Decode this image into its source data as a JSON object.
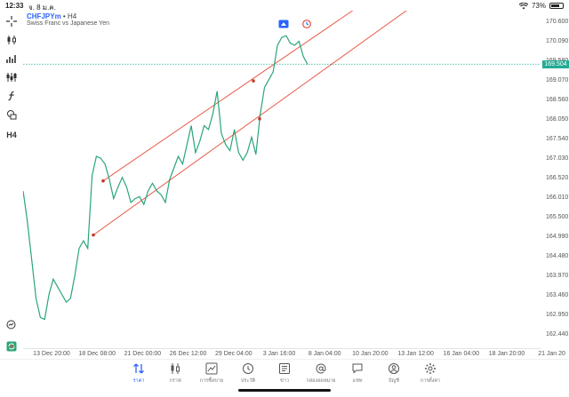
{
  "status_bar": {
    "time": "12:33",
    "date": "จ. 8 ม.ค.",
    "battery": "73%",
    "battery_level": 0.73
  },
  "symbol": {
    "name": "CHFJPYm",
    "separator": "•",
    "timeframe": "H4",
    "description": "Swiss Franc vs Japanese Yen"
  },
  "toolbar": {
    "items": [
      {
        "name": "crosshair-icon"
      },
      {
        "name": "candlestick-icon"
      },
      {
        "name": "indicators-icon"
      },
      {
        "name": "objects-icon"
      },
      {
        "name": "function-icon"
      },
      {
        "name": "shapes-icon"
      },
      {
        "name": "timeframe-label",
        "label": "H4"
      }
    ]
  },
  "price_axis": {
    "ticks": [
      "170.600",
      "170.090",
      "169.580",
      "169.070",
      "168.560",
      "168.050",
      "167.540",
      "167.030",
      "166.520",
      "166.010",
      "165.500",
      "164.990",
      "164.480",
      "163.970",
      "163.460",
      "162.950",
      "162.440"
    ],
    "current_price": "169.504",
    "accent_color": "#22ab94"
  },
  "time_axis": {
    "ticks": [
      "13 Dec 20:00",
      "18 Dec 08:00",
      "21 Dec 00:00",
      "26 Dec 12:00",
      "29 Dec 04:00",
      "3 Jan 16:00",
      "8 Jan 04:00",
      "10 Jan 20:00",
      "13 Jan 12:00",
      "16 Jan 04:00",
      "18 Jan 20:00",
      "21 Jan 20"
    ]
  },
  "chart_data": {
    "type": "line",
    "series": [
      {
        "color": "#2aa57a",
        "values": [
          166.2,
          165.4,
          164.4,
          163.4,
          162.9,
          162.85,
          163.5,
          163.9,
          163.7,
          163.5,
          163.3,
          163.4,
          164.0,
          164.7,
          164.9,
          164.7,
          166.6,
          167.1,
          167.05,
          166.9,
          166.5,
          166.0,
          166.3,
          166.55,
          166.3,
          165.9,
          166.0,
          166.05,
          165.85,
          166.2,
          166.4,
          166.2,
          166.1,
          165.9,
          166.5,
          166.8,
          167.1,
          166.9,
          167.4,
          167.9,
          167.2,
          167.5,
          167.9,
          167.8,
          168.2,
          168.8,
          167.7,
          167.4,
          167.25,
          167.8,
          167.2,
          167.0,
          167.2,
          167.6,
          167.15,
          168.2,
          168.9,
          169.1,
          169.3,
          170.0,
          170.2,
          170.25,
          170.05,
          170.0,
          170.1,
          169.7,
          169.5
        ]
      }
    ],
    "price_range": [
      162.1,
      170.9
    ],
    "channel_lines": [
      {
        "x1": 90,
        "y1": 166.46,
        "x2": 380,
        "y2": 171.05,
        "color": "#e74c3c"
      },
      {
        "x1": 79,
        "y1": 165.05,
        "x2": 440,
        "y2": 171.05,
        "color": "#e74c3c"
      }
    ],
    "anchor_points": [
      {
        "x": 90,
        "y": 166.46
      },
      {
        "x": 259,
        "y": 169.07
      },
      {
        "x": 79,
        "y": 165.05
      },
      {
        "x": 266,
        "y": 168.08
      }
    ],
    "current_price": 169.504,
    "grid": false
  },
  "tabs": [
    {
      "label": "ราคา",
      "icon": "sort-arrows-icon",
      "active": true
    },
    {
      "label": "กราฟ",
      "icon": "candlestick-icon",
      "active": false
    },
    {
      "label": "การซื้อขาย",
      "icon": "trade-chart-icon",
      "active": false
    },
    {
      "label": "ประวัติ",
      "icon": "history-icon",
      "active": false
    },
    {
      "label": "ข่าว",
      "icon": "news-icon",
      "active": false
    },
    {
      "label": "กล่องจดหมาย",
      "icon": "at-icon",
      "active": false
    },
    {
      "label": "แชท",
      "icon": "chat-icon",
      "active": false
    },
    {
      "label": "บัญชี",
      "icon": "account-icon",
      "active": false
    },
    {
      "label": "การตั้งค่า",
      "icon": "settings-icon",
      "active": false
    }
  ]
}
